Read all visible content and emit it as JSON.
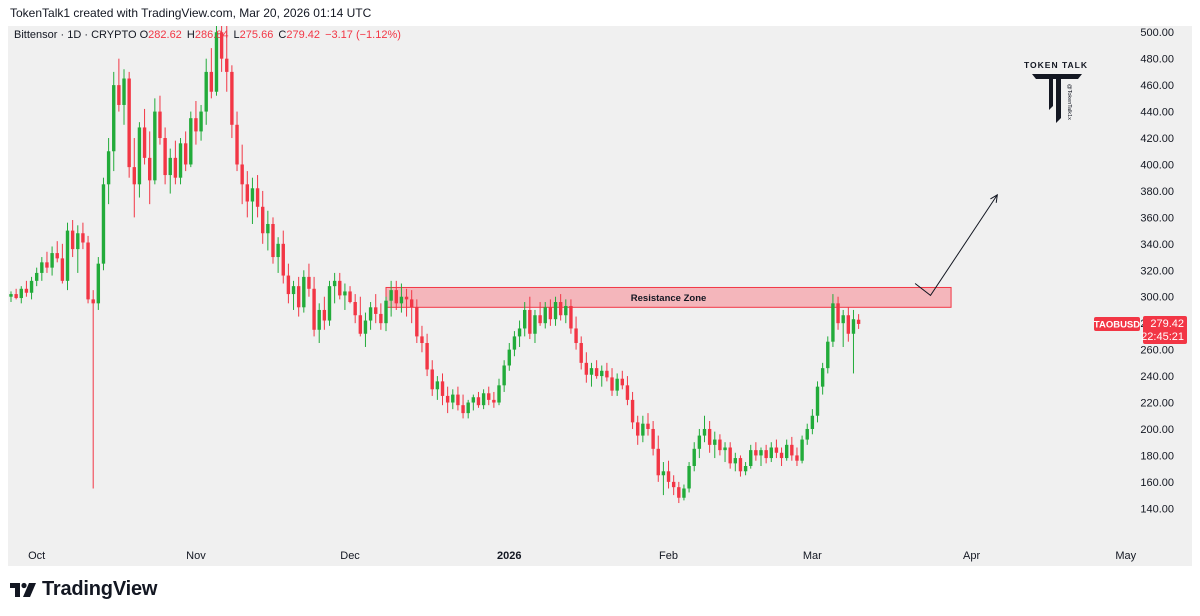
{
  "header": {
    "created_line": "TokenTalk1 created with TradingView.com, Mar 20, 2026 01:14 UTC"
  },
  "symbol": {
    "name": "Bittensor",
    "interval": "1D",
    "exchange": "CRYPTO",
    "open_label": "O",
    "open": "282.62",
    "high_label": "H",
    "high": "286.84",
    "low_label": "L",
    "low": "275.66",
    "close_label": "C",
    "close": "279.42",
    "change": "−3.17 (−1.12%)"
  },
  "price_tag": {
    "ticker": "TAOBUSD",
    "price": "279.42",
    "countdown": "22:45:21"
  },
  "watermark": {
    "text": "TOKEN TALK",
    "handle": "@TokenTalk1x"
  },
  "footer": {
    "brand": "TradingView"
  },
  "colors": {
    "up": "#22ab3a",
    "down": "#f23645",
    "zone_fill": "#f5a3a9",
    "zone_stroke": "#f23645",
    "background": "#f0f0f0"
  },
  "chart_data": {
    "type": "candlestick",
    "title": "Bittensor · 1D · CRYPTO",
    "ylim": [
      120,
      510
    ],
    "y_ticks": [
      140,
      160,
      180,
      200,
      220,
      240,
      260,
      280,
      300,
      320,
      340,
      360,
      380,
      400,
      420,
      440,
      460,
      480,
      500
    ],
    "x_ticks": [
      {
        "label": "Oct",
        "date": "2025-10-01"
      },
      {
        "label": "Nov",
        "date": "2025-11-01"
      },
      {
        "label": "Dec",
        "date": "2025-12-01"
      },
      {
        "label": "2026",
        "date": "2026-01-01",
        "bold": true
      },
      {
        "label": "Feb",
        "date": "2026-02-01"
      },
      {
        "label": "Mar",
        "date": "2026-03-01"
      },
      {
        "label": "Apr",
        "date": "2026-04-01"
      },
      {
        "label": "May",
        "date": "2026-05-01"
      }
    ],
    "start_date": "2025-09-26",
    "end_date": "2026-05-08",
    "first_candle_date": "2025-09-26",
    "grid": false,
    "candles": [
      [
        300,
        304,
        296,
        302
      ],
      [
        302,
        306,
        298,
        299
      ],
      [
        299,
        308,
        295,
        306
      ],
      [
        306,
        312,
        300,
        303
      ],
      [
        303,
        315,
        298,
        312
      ],
      [
        312,
        322,
        308,
        318
      ],
      [
        318,
        330,
        312,
        326
      ],
      [
        326,
        334,
        318,
        322
      ],
      [
        322,
        338,
        316,
        333
      ],
      [
        333,
        342,
        326,
        329
      ],
      [
        329,
        340,
        310,
        312
      ],
      [
        312,
        356,
        305,
        350
      ],
      [
        350,
        358,
        330,
        336
      ],
      [
        336,
        354,
        318,
        348
      ],
      [
        348,
        356,
        336,
        341
      ],
      [
        341,
        346,
        295,
        298
      ],
      [
        298,
        305,
        155,
        295
      ],
      [
        295,
        330,
        290,
        325
      ],
      [
        325,
        390,
        320,
        385
      ],
      [
        385,
        420,
        370,
        410
      ],
      [
        410,
        470,
        395,
        460
      ],
      [
        460,
        480,
        440,
        445
      ],
      [
        445,
        472,
        430,
        465
      ],
      [
        465,
        470,
        390,
        398
      ],
      [
        398,
        420,
        360,
        385
      ],
      [
        385,
        432,
        375,
        428
      ],
      [
        428,
        442,
        400,
        405
      ],
      [
        405,
        425,
        370,
        388
      ],
      [
        388,
        450,
        385,
        440
      ],
      [
        440,
        452,
        415,
        420
      ],
      [
        420,
        428,
        385,
        392
      ],
      [
        392,
        412,
        378,
        405
      ],
      [
        405,
        418,
        385,
        390
      ],
      [
        390,
        420,
        385,
        416
      ],
      [
        416,
        425,
        395,
        400
      ],
      [
        400,
        440,
        398,
        435
      ],
      [
        435,
        448,
        415,
        425
      ],
      [
        425,
        445,
        418,
        440
      ],
      [
        440,
        480,
        430,
        470
      ],
      [
        470,
        488,
        450,
        455
      ],
      [
        455,
        508,
        452,
        500
      ],
      [
        500,
        515,
        470,
        480
      ],
      [
        480,
        510,
        455,
        470
      ],
      [
        470,
        475,
        420,
        430
      ],
      [
        430,
        440,
        395,
        400
      ],
      [
        400,
        415,
        370,
        385
      ],
      [
        385,
        395,
        360,
        372
      ],
      [
        372,
        390,
        355,
        382
      ],
      [
        382,
        392,
        360,
        368
      ],
      [
        368,
        380,
        340,
        348
      ],
      [
        348,
        365,
        335,
        355
      ],
      [
        355,
        360,
        325,
        330
      ],
      [
        330,
        345,
        318,
        340
      ],
      [
        340,
        350,
        310,
        316
      ],
      [
        316,
        325,
        295,
        302
      ],
      [
        302,
        312,
        290,
        308
      ],
      [
        308,
        315,
        285,
        292
      ],
      [
        292,
        320,
        288,
        315
      ],
      [
        315,
        325,
        300,
        306
      ],
      [
        306,
        315,
        270,
        275
      ],
      [
        275,
        295,
        265,
        290
      ],
      [
        290,
        300,
        275,
        282
      ],
      [
        282,
        312,
        278,
        308
      ],
      [
        308,
        318,
        295,
        312
      ],
      [
        312,
        318,
        298,
        301
      ],
      [
        301,
        310,
        290,
        304
      ],
      [
        304,
        308,
        295,
        296
      ],
      [
        296,
        302,
        280,
        286
      ],
      [
        286,
        300,
        270,
        272
      ],
      [
        272,
        288,
        262,
        282
      ],
      [
        282,
        296,
        275,
        292
      ],
      [
        292,
        302,
        280,
        287
      ],
      [
        287,
        295,
        275,
        280
      ],
      [
        280,
        300,
        274,
        297
      ],
      [
        297,
        312,
        285,
        305
      ],
      [
        305,
        312,
        290,
        295
      ],
      [
        295,
        310,
        288,
        300
      ],
      [
        300,
        306,
        285,
        298
      ],
      [
        298,
        305,
        280,
        292
      ],
      [
        292,
        298,
        265,
        270
      ],
      [
        270,
        278,
        258,
        265
      ],
      [
        265,
        272,
        240,
        245
      ],
      [
        245,
        252,
        225,
        230
      ],
      [
        230,
        240,
        222,
        236
      ],
      [
        236,
        242,
        218,
        225
      ],
      [
        225,
        232,
        212,
        220
      ],
      [
        220,
        230,
        215,
        226
      ],
      [
        226,
        232,
        214,
        218
      ],
      [
        218,
        226,
        208,
        212
      ],
      [
        212,
        222,
        208,
        220
      ],
      [
        220,
        226,
        214,
        224
      ],
      [
        224,
        228,
        216,
        218
      ],
      [
        218,
        230,
        215,
        227
      ],
      [
        227,
        232,
        218,
        222
      ],
      [
        222,
        228,
        216,
        220
      ],
      [
        220,
        238,
        218,
        233
      ],
      [
        233,
        252,
        228,
        248
      ],
      [
        248,
        265,
        244,
        260
      ],
      [
        260,
        274,
        255,
        270
      ],
      [
        270,
        282,
        262,
        276
      ],
      [
        276,
        296,
        270,
        290
      ],
      [
        290,
        300,
        268,
        272
      ],
      [
        272,
        290,
        265,
        286
      ],
      [
        286,
        296,
        278,
        280
      ],
      [
        280,
        296,
        276,
        292
      ],
      [
        292,
        298,
        278,
        283
      ],
      [
        283,
        300,
        278,
        296
      ],
      [
        296,
        302,
        282,
        286
      ],
      [
        286,
        298,
        280,
        293
      ],
      [
        293,
        298,
        272,
        276
      ],
      [
        276,
        285,
        260,
        265
      ],
      [
        265,
        270,
        245,
        250
      ],
      [
        250,
        258,
        235,
        241
      ],
      [
        241,
        250,
        232,
        246
      ],
      [
        246,
        252,
        238,
        240
      ],
      [
        240,
        248,
        232,
        244
      ],
      [
        244,
        250,
        236,
        239
      ],
      [
        239,
        246,
        225,
        229
      ],
      [
        229,
        242,
        225,
        238
      ],
      [
        238,
        244,
        230,
        233
      ],
      [
        233,
        240,
        218,
        222
      ],
      [
        222,
        228,
        200,
        205
      ],
      [
        205,
        210,
        188,
        195
      ],
      [
        195,
        210,
        190,
        204
      ],
      [
        204,
        212,
        195,
        200
      ],
      [
        200,
        206,
        180,
        185
      ],
      [
        185,
        195,
        160,
        165
      ],
      [
        165,
        175,
        150,
        168
      ],
      [
        168,
        176,
        155,
        160
      ],
      [
        160,
        165,
        150,
        156
      ],
      [
        156,
        160,
        144,
        148
      ],
      [
        148,
        158,
        146,
        155
      ],
      [
        155,
        175,
        152,
        172
      ],
      [
        172,
        190,
        168,
        185
      ],
      [
        185,
        200,
        178,
        195
      ],
      [
        195,
        210,
        190,
        200
      ],
      [
        200,
        206,
        182,
        188
      ],
      [
        188,
        198,
        178,
        192
      ],
      [
        192,
        196,
        180,
        184
      ],
      [
        184,
        190,
        175,
        186
      ],
      [
        186,
        190,
        170,
        174
      ],
      [
        174,
        182,
        168,
        178
      ],
      [
        178,
        180,
        164,
        168
      ],
      [
        168,
        175,
        165,
        172
      ],
      [
        172,
        188,
        170,
        184
      ],
      [
        184,
        190,
        176,
        180
      ],
      [
        180,
        186,
        172,
        184
      ],
      [
        184,
        188,
        174,
        178
      ],
      [
        178,
        190,
        175,
        186
      ],
      [
        186,
        192,
        178,
        182
      ],
      [
        182,
        186,
        172,
        178
      ],
      [
        178,
        192,
        176,
        188
      ],
      [
        188,
        194,
        176,
        180
      ],
      [
        180,
        186,
        172,
        176
      ],
      [
        176,
        195,
        174,
        192
      ],
      [
        192,
        204,
        188,
        200
      ],
      [
        200,
        215,
        196,
        210
      ],
      [
        210,
        236,
        205,
        232
      ],
      [
        232,
        250,
        226,
        246
      ],
      [
        246,
        270,
        242,
        266
      ],
      [
        266,
        302,
        262,
        295
      ],
      [
        295,
        300,
        275,
        280
      ],
      [
        280,
        290,
        262,
        286
      ],
      [
        286,
        292,
        266,
        272
      ],
      [
        272,
        290,
        242,
        283
      ],
      [
        282.62,
        286.84,
        275.66,
        279.42
      ]
    ],
    "annotations": [
      {
        "type": "rectangle",
        "label": "Resistance Zone",
        "y_low": 292,
        "y_high": 307,
        "x_from": "2025-12-08",
        "x_to": "2026-03-28"
      },
      {
        "type": "path",
        "description": "projection arrow",
        "points": [
          [
            281,
            310
          ],
          [
            284,
            301
          ],
          [
            297,
            377
          ]
        ]
      }
    ]
  }
}
